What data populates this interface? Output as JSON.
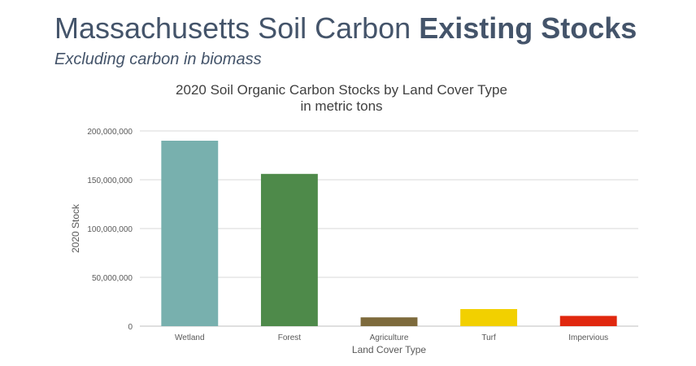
{
  "slide": {
    "title_main": "Massachusetts Soil Carbon ",
    "title_bold": "Existing Stocks",
    "subtitle": "Excluding carbon in biomass"
  },
  "chart_data": {
    "type": "bar",
    "title": "2020 Soil Organic Carbon Stocks by Land Cover Type",
    "subtitle": "in metric tons",
    "xlabel": "Land Cover Type",
    "ylabel": "2020 Stock",
    "categories": [
      "Wetland",
      "Forest",
      "Agriculture",
      "Turf",
      "Impervious"
    ],
    "values": [
      190000000,
      156000000,
      9000000,
      17500000,
      10500000
    ],
    "colors": [
      "#78b0ae",
      "#4e8a4a",
      "#7d6a3c",
      "#f2d000",
      "#e0270e"
    ],
    "ylim": [
      0,
      200000000
    ],
    "yticks": [
      0,
      50000000,
      100000000,
      150000000,
      200000000
    ],
    "ytick_labels": [
      "0",
      "50,000,000",
      "100,000,000",
      "150,000,000",
      "200,000,000"
    ],
    "grid": true,
    "legend": "none"
  }
}
